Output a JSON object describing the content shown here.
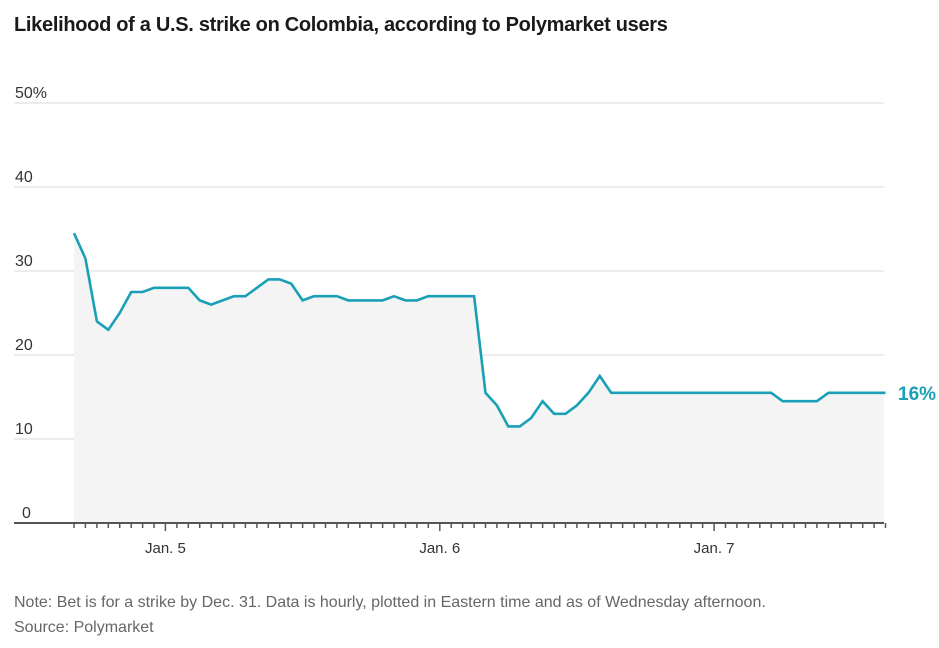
{
  "header": {
    "title": "Likelihood of a U.S. strike on Colombia, according to Polymarket users"
  },
  "footer": {
    "note": "Note: Bet is for a strike by Dec. 31. Data is hourly, plotted in Eastern time and as of Wednesday afternoon.",
    "source": "Source: Polymarket"
  },
  "colors": {
    "line": "#1aa0b6",
    "area": "#f4f4f4",
    "grid": "#e6e6e6",
    "axis": "#555555"
  },
  "chart_data": {
    "type": "line",
    "title": "Likelihood of a U.S. strike on Colombia, according to Polymarket users",
    "xlabel": "",
    "ylabel": "",
    "x_unit": "hour",
    "x_start": "Jan. 4, 4 p.m. ET",
    "x_step_hours": 1,
    "xlim_hours": [
      0,
      71
    ],
    "ylim": [
      0,
      50
    ],
    "yticks": [
      0,
      10,
      20,
      30,
      40,
      50
    ],
    "ytick_labels": [
      "0",
      "10",
      "20",
      "30",
      "40",
      "50%"
    ],
    "xticks": [
      {
        "hour": 8,
        "label": "Jan. 5"
      },
      {
        "hour": 32,
        "label": "Jan. 6"
      },
      {
        "hour": 56,
        "label": "Jan. 7"
      }
    ],
    "grid": true,
    "area_fill": true,
    "end_label": "16%",
    "series": [
      {
        "name": "Likelihood of U.S. strike",
        "values": [
          34.5,
          31.5,
          24,
          23,
          25,
          27.5,
          27.5,
          28,
          28,
          28,
          28,
          26.5,
          26,
          26.5,
          27,
          27,
          28,
          29,
          29,
          28.5,
          26.5,
          27,
          27,
          27,
          26.5,
          26.5,
          26.5,
          26.5,
          27,
          26.5,
          26.5,
          27,
          27,
          27,
          27,
          27,
          15.5,
          14,
          11.5,
          11.5,
          12.5,
          14.5,
          13,
          13,
          14,
          15.5,
          17.5,
          15.5,
          15.5,
          15.5,
          15.5,
          15.5,
          15.5,
          15.5,
          15.5,
          15.5,
          15.5,
          15.5,
          15.5,
          15.5,
          15.5,
          15.5,
          14.5,
          14.5,
          14.5,
          14.5,
          15.5,
          15.5,
          15.5,
          15.5,
          15.5,
          15.5
        ]
      }
    ]
  }
}
